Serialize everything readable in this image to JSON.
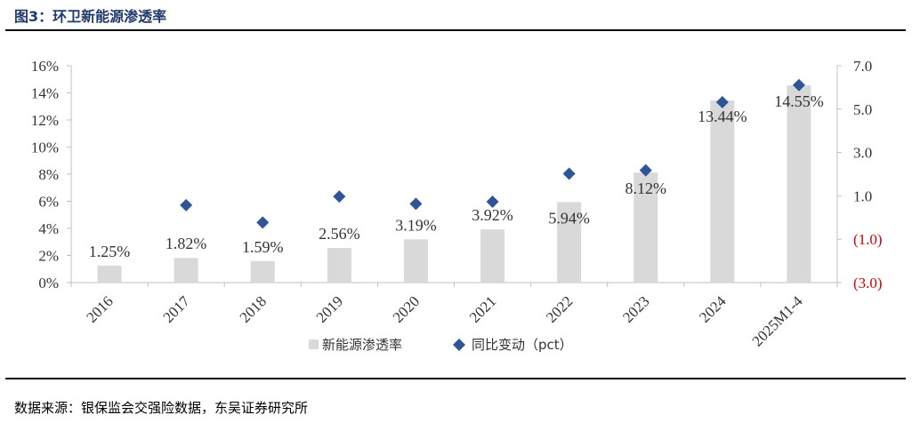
{
  "header": {
    "title": "图3：环卫新能源渗透率"
  },
  "footer": {
    "source": "数据来源：银保监会交强险数据，东吴证券研究所"
  },
  "colors": {
    "bar": "#d9d9d9",
    "marker": "#2f5597",
    "axis": "#bfbfbf",
    "negative_tick": "#d40000",
    "title": "#1f3a6b"
  },
  "chart_data": {
    "type": "bar",
    "title": "",
    "xlabel": "",
    "ylabel": "",
    "categories": [
      "2016",
      "2017",
      "2018",
      "2019",
      "2020",
      "2021",
      "2022",
      "2023",
      "2024",
      "2025M1-4"
    ],
    "series": [
      {
        "name": "新能源渗透率",
        "type": "bar",
        "axis": "left",
        "values": [
          1.25,
          1.82,
          1.59,
          2.56,
          3.19,
          3.92,
          5.94,
          8.12,
          13.44,
          14.55
        ],
        "data_labels": [
          "1.25%",
          "1.82%",
          "1.59%",
          "2.56%",
          "3.19%",
          "3.92%",
          "5.94%",
          "8.12%",
          "13.44%",
          "14.55%"
        ]
      },
      {
        "name": "同比变动（pct）",
        "type": "scatter",
        "axis": "right",
        "marker": "diamond",
        "values": [
          null,
          0.57,
          -0.23,
          0.97,
          0.63,
          0.73,
          2.02,
          2.18,
          5.32,
          6.11
        ]
      }
    ],
    "y_left": {
      "ylim": [
        0,
        16
      ],
      "ticks": [
        "0%",
        "2%",
        "4%",
        "6%",
        "8%",
        "10%",
        "12%",
        "14%",
        "16%"
      ]
    },
    "y_right": {
      "ylim": [
        -3,
        7
      ],
      "ticks": [
        "7.0",
        "5.0",
        "3.0",
        "1.0",
        "(1.0)",
        "(3.0)"
      ],
      "tick_values": [
        7,
        5,
        3,
        1,
        -1,
        -3
      ]
    },
    "legend": {
      "placement": "bottom",
      "items": [
        {
          "label": "新能源渗透率",
          "symbol": "square"
        },
        {
          "label": "同比变动（pct）",
          "symbol": "diamond"
        }
      ]
    },
    "grid": false
  }
}
